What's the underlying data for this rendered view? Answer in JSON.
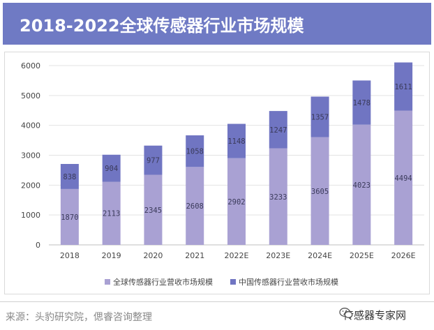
{
  "header": {
    "title": "2018-2022全球传感器行业市场规模"
  },
  "chart_data": {
    "type": "bar",
    "stacked": true,
    "categories": [
      "2018",
      "2019",
      "2020",
      "2021",
      "2022E",
      "2023E",
      "2024E",
      "2025E",
      "2026E"
    ],
    "series": [
      {
        "name": "全球传感器行业营收市场规模",
        "values": [
          1870,
          2113,
          2345,
          2608,
          2902,
          3233,
          3605,
          4023,
          4494
        ],
        "color": "#a9a1d3"
      },
      {
        "name": "中国传感器行业营收市场规模",
        "values": [
          838,
          904,
          977,
          1058,
          1148,
          1247,
          1357,
          1478,
          1611
        ],
        "color": "#7075c2"
      }
    ],
    "yticks": [
      0,
      1000,
      2000,
      3000,
      4000,
      5000,
      6000
    ],
    "ylim": [
      0,
      6000
    ],
    "grid": true,
    "legend_position": "bottom"
  },
  "footer": {
    "source": "来源：头豹研究院，偲睿咨询整理",
    "brand": "传感器专家网",
    "brand_icon": "wechat-icon"
  }
}
